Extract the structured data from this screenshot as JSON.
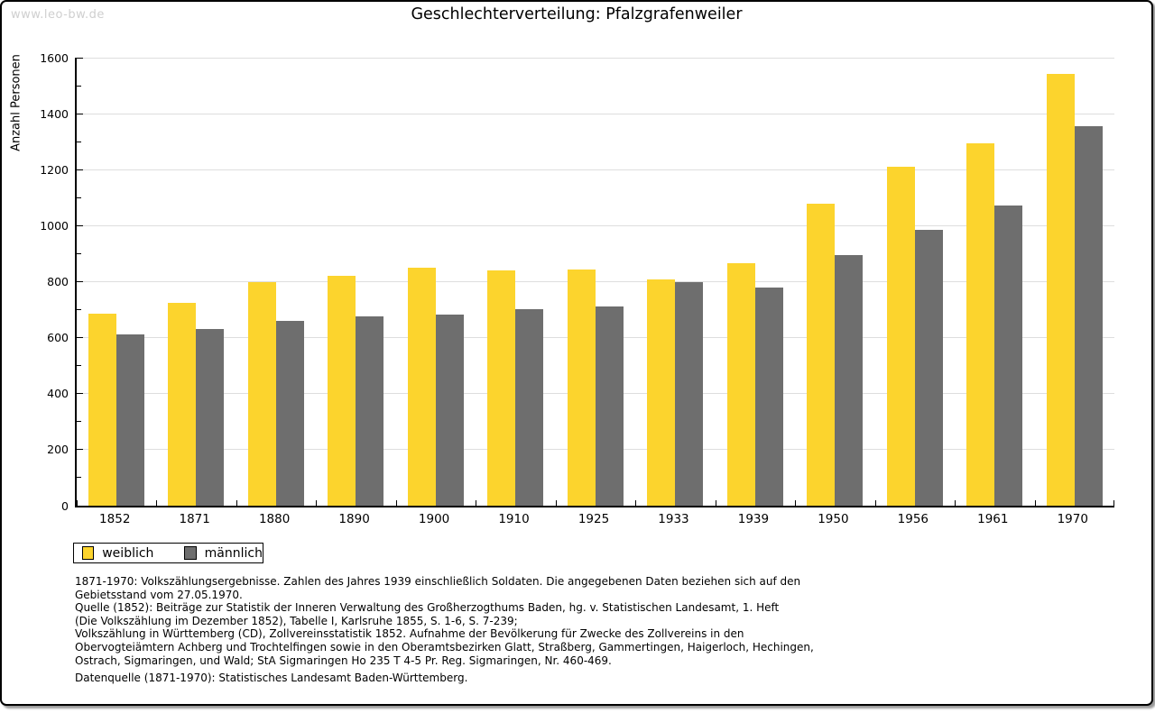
{
  "page": {
    "watermark": "www.leo-bw.de"
  },
  "chart_data": {
    "type": "bar",
    "title": "Geschlechterverteilung: Pfalzgrafenweiler",
    "xlabel": "",
    "ylabel": "Anzahl Personen",
    "categories": [
      "1852",
      "1871",
      "1880",
      "1890",
      "1900",
      "1910",
      "1925",
      "1933",
      "1939",
      "1950",
      "1956",
      "1961",
      "1970"
    ],
    "series": [
      {
        "name": "weiblich",
        "color": "#FCD42D",
        "values": [
          685,
          723,
          797,
          820,
          849,
          841,
          843,
          807,
          866,
          1079,
          1212,
          1293,
          1541
        ]
      },
      {
        "name": "männlich",
        "color": "#6E6E6E",
        "values": [
          613,
          630,
          659,
          677,
          681,
          703,
          712,
          800,
          780,
          895,
          984,
          1071,
          1354
        ]
      }
    ],
    "ylim": [
      0,
      1600
    ],
    "yticks": [
      0,
      200,
      400,
      600,
      800,
      1000,
      1200,
      1400,
      1600
    ],
    "minor_tick_step": 100,
    "grid": true,
    "legend_position": "bottom-left"
  },
  "notes": {
    "lines": [
      "1871-1970: Volkszählungsergebnisse. Zahlen des Jahres 1939 einschließlich Soldaten. Die angegebenen Daten beziehen sich auf den",
      "Gebietsstand vom 27.05.1970.",
      "Quelle (1852): Beiträge zur Statistik der Inneren Verwaltung des Großherzogthums Baden, hg. v. Statistischen Landesamt, 1. Heft",
      "(Die Volkszählung im Dezember 1852), Tabelle I, Karlsruhe 1855, S. 1-6, S. 7-239;",
      "Volkszählung in Württemberg (CD), Zollvereinsstatistik 1852. Aufnahme der Bevölkerung für Zwecke des Zollvereins in den",
      "Obervogteiämtern Achberg und Trochtelfingen sowie in den Oberamtsbezirken Glatt, Straßberg, Gammertingen, Haigerloch, Hechingen,",
      "Ostrach, Sigmaringen, und Wald; StA Sigmaringen Ho 235 T 4-5 Pr. Reg. Sigmaringen, Nr. 460-469."
    ],
    "datasource": "Datenquelle (1871-1970): Statistisches Landesamt Baden-Württemberg."
  },
  "colors": {
    "female_bar": "#FCD42D",
    "male_bar": "#6E6E6E",
    "gridline": "#dedede",
    "watermark": "#cfcfcf",
    "frame": "#000000"
  }
}
